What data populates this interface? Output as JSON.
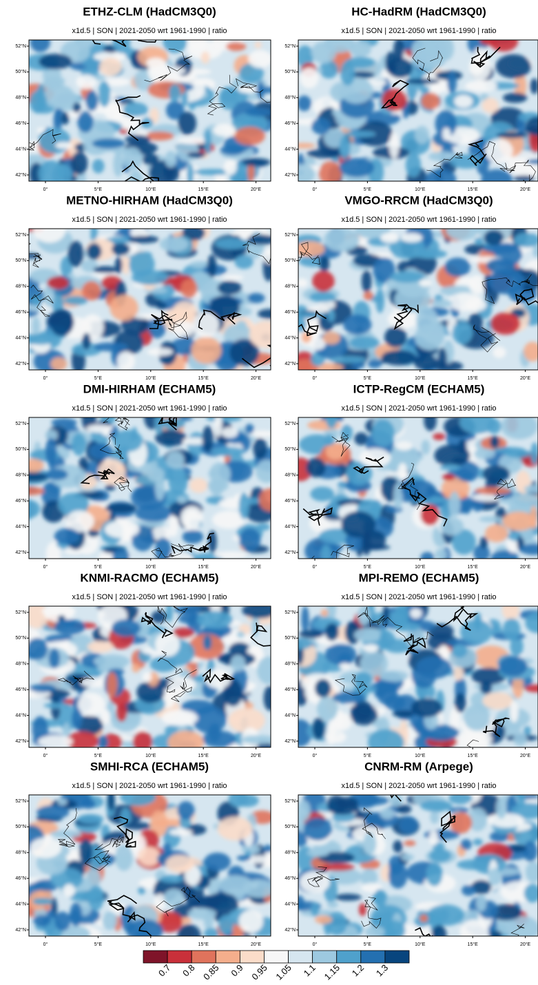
{
  "panels": [
    {
      "title": "ETHZ-CLM (HadCM3Q0)",
      "subtitle": "x1d.5 | SON | 2021-2050 wrt 1961-1990 | ratio"
    },
    {
      "title": "HC-HadRM (HadCM3Q0)",
      "subtitle": "x1d.5 | SON | 2021-2050 wrt 1961-1990 | ratio"
    },
    {
      "title": "METNO-HIRHAM (HadCM3Q0)",
      "subtitle": "x1d.5 | SON | 2021-2050 wrt 1961-1990 | ratio"
    },
    {
      "title": "VMGO-RRCM (HadCM3Q0)",
      "subtitle": "x1d.5 | SON | 2021-2050 wrt 1961-1990 | ratio"
    },
    {
      "title": "DMI-HIRHAM (ECHAM5)",
      "subtitle": "x1d.5 | SON | 2021-2050 wrt 1961-1990 | ratio"
    },
    {
      "title": "ICTP-RegCM (ECHAM5)",
      "subtitle": "x1d.5 | SON | 2021-2050 wrt 1961-1990 | ratio"
    },
    {
      "title": "KNMI-RACMO (ECHAM5)",
      "subtitle": "x1d.5 | SON | 2021-2050 wrt 1961-1990 | ratio"
    },
    {
      "title": "MPI-REMO (ECHAM5)",
      "subtitle": "x1d.5 | SON | 2021-2050 wrt 1961-1990 | ratio"
    },
    {
      "title": "SMHI-RCA (ECHAM5)",
      "subtitle": "x1d.5 | SON | 2021-2050 wrt 1961-1990 | ratio"
    },
    {
      "title": "CNRM-RM (Arpege)",
      "subtitle": "x1d.5 | SON | 2021-2050 wrt 1961-1990 | ratio"
    }
  ],
  "lat_ticks": [
    {
      "value": 52,
      "label": "52°N"
    },
    {
      "value": 50,
      "label": "50°N"
    },
    {
      "value": 48,
      "label": "48°N"
    },
    {
      "value": 46,
      "label": "46°N"
    },
    {
      "value": 44,
      "label": "44°N"
    },
    {
      "value": 42,
      "label": "42°N"
    }
  ],
  "lon_ticks": [
    {
      "value": 0,
      "label": "0°"
    },
    {
      "value": 5,
      "label": "5°E"
    },
    {
      "value": 10,
      "label": "10°E"
    },
    {
      "value": 15,
      "label": "15°E"
    },
    {
      "value": 20,
      "label": "20°E"
    }
  ],
  "colorbar": {
    "colors": [
      "#7f1429",
      "#c9303a",
      "#e0735c",
      "#f4ae8c",
      "#fbdcc9",
      "#f7f7f7",
      "#d6e6f0",
      "#9dc9e0",
      "#4fa1cc",
      "#2470b1",
      "#08457e"
    ],
    "labels": [
      "0.7",
      "0.8",
      "0.85",
      "0.9",
      "0.95",
      "1.05",
      "1.1",
      "1.15",
      "1.2",
      "1.3"
    ]
  }
}
